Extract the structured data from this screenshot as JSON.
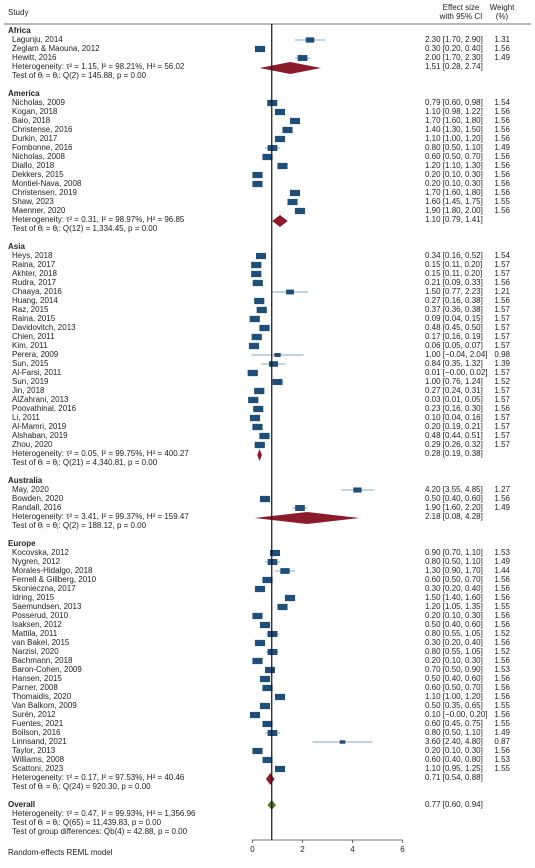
{
  "chart_data": {
    "type": "forest",
    "headers": {
      "study": "Study",
      "effect": [
        "Effect size",
        "with 95% CI"
      ],
      "weight": [
        "Weight",
        "(%)"
      ]
    },
    "model_label": "Random-effects REML model",
    "xlim": [
      0,
      6
    ],
    "xticks": [
      0,
      2,
      4,
      6
    ],
    "colors": {
      "study": "#1f4e79",
      "group": "#8b1a2b",
      "overall": "#4e7a2a",
      "ci": "#5b8db8"
    },
    "groups": [
      {
        "name": "Africa",
        "studies": [
          "Lagunju, 2014",
          "Zeglam & Maouna, 2012",
          "Hewitt, 2016"
        ],
        "es": [
          2.3,
          0.3,
          2.0
        ],
        "lo": [
          1.7,
          0.2,
          1.7
        ],
        "hi": [
          2.9,
          0.4,
          2.3
        ],
        "value_labels": [
          "2.30 [1.70, 2.90]",
          "0.30 [0.20, 0.40]",
          "2.00 [1.70, 2.30]"
        ],
        "weights": [
          1.31,
          1.56,
          1.49
        ],
        "heterogeneity": "Heterogeneity: τ² = 1.15, I² = 98.21%, H² = 56.02",
        "test": "Test of θᵢ = θⱼ: Q(2) = 145.88, p = 0.00",
        "summary": {
          "es": 1.51,
          "lo": 0.28,
          "hi": 2.74,
          "label": "1.51 [0.28, 2.74]"
        }
      },
      {
        "name": "America",
        "studies": [
          "Nicholas, 2009",
          "Kogan, 2018",
          "Baio, 2018",
          "Christense, 2016",
          "Durkin, 2017",
          "Fombonne, 2016",
          "Nicholas, 2008",
          "Diallo, 2018",
          "Dekkers, 2015",
          "Montiel-Nava, 2008",
          "Christensen, 2019",
          "Shaw, 2023",
          "Maenner, 2020"
        ],
        "es": [
          0.79,
          1.1,
          1.7,
          1.4,
          1.1,
          0.8,
          0.6,
          1.2,
          0.2,
          0.2,
          1.7,
          1.6,
          1.9
        ],
        "lo": [
          0.6,
          0.98,
          1.6,
          1.3,
          1.0,
          0.5,
          0.5,
          1.1,
          0.1,
          0.1,
          1.6,
          1.45,
          1.8
        ],
        "hi": [
          0.98,
          1.22,
          1.8,
          1.5,
          1.2,
          1.1,
          0.7,
          1.3,
          0.3,
          0.3,
          1.8,
          1.75,
          2.0
        ],
        "value_labels": [
          "0.79 [0.60, 0.98]",
          "1.10 [0.98, 1.22]",
          "1.70 [1.60, 1.80]",
          "1.40 [1.30, 1.50]",
          "1.10 [1.00, 1.20]",
          "0.80 [0.50, 1.10]",
          "0.60 [0.50, 0.70]",
          "1.20 [1.10, 1.30]",
          "0.20 [0.10, 0.30]",
          "0.20 [0.10, 0.30]",
          "1.70 [1.60, 1.80]",
          "1.60 [1.45, 1.75]",
          "1.90 [1.80, 2.00]"
        ],
        "weights": [
          1.54,
          1.56,
          1.56,
          1.56,
          1.56,
          1.49,
          1.56,
          1.56,
          1.56,
          1.56,
          1.56,
          1.55,
          1.56
        ],
        "heterogeneity": "Heterogeneity: τ² = 0.31, I² = 98.97%, H² = 96.85",
        "test": "Test of θᵢ = θⱼ: Q(12) = 1,334.45, p = 0.00",
        "summary": {
          "es": 1.1,
          "lo": 0.79,
          "hi": 1.41,
          "label": "1.10 [0.79, 1.41]"
        }
      },
      {
        "name": "Asia",
        "studies": [
          "Heys, 2018",
          "Raina, 2017",
          "Akhter, 2018",
          "Rudra, 2017",
          "Chaaya, 2016",
          "Huang, 2014",
          "Raz, 2015",
          "Raina, 2015",
          "Davidovitch, 2013",
          "Chien, 2011",
          "Kim, 2011",
          "Perera, 2009",
          "Sun, 2015",
          "Al-Farsi, 2011",
          "Sun, 2019",
          "Jin, 2018",
          "AlZahrani, 2013",
          "Poovathinal, 2016",
          "Li, 2011",
          "Al-Mamri, 2019",
          "Alshaban, 2019",
          "Zhou, 2020"
        ],
        "es": [
          0.34,
          0.15,
          0.15,
          0.21,
          1.5,
          0.27,
          0.37,
          0.09,
          0.48,
          0.17,
          0.06,
          1.0,
          0.84,
          0.01,
          1.0,
          0.27,
          0.03,
          0.23,
          0.1,
          0.2,
          0.48,
          0.29
        ],
        "lo": [
          0.16,
          0.11,
          0.11,
          0.09,
          0.77,
          0.16,
          0.36,
          0.04,
          0.45,
          0.16,
          0.05,
          -0.04,
          0.35,
          0,
          0.76,
          0.24,
          0.01,
          0.16,
          0.04,
          0.19,
          0.44,
          0.26
        ],
        "hi": [
          0.52,
          0.2,
          0.2,
          0.33,
          2.23,
          0.38,
          0.38,
          0.15,
          0.5,
          0.19,
          0.07,
          2.04,
          1.32,
          0.02,
          1.24,
          0.31,
          0.05,
          0.3,
          0.16,
          0.21,
          0.51,
          0.32
        ],
        "value_labels": [
          "0.34 [0.16, 0.52]",
          "0.15 [0.11, 0.20]",
          "0.15 [0.11, 0.20]",
          "0.21 [0.09, 0.33]",
          "1.50 [0.77, 2.23]",
          "0.27 [0.16, 0.38]",
          "0.37 [0.36, 0.38]",
          "0.09 [0.04, 0.15]",
          "0.48 [0.45, 0.50]",
          "0.17 [0.16, 0.19]",
          "0.06 [0.05, 0.07]",
          "1.00 [−0.04, 2.04]",
          "0.84 [0.35, 1.32]",
          "0.01 [−0.00, 0.02]",
          "1.00 [0.76, 1.24]",
          "0.27 [0.24, 0.31]",
          "0.03 [0.01, 0.05]",
          "0.23 [0.16, 0.30]",
          "0.10 [0.04, 0.16]",
          "0.20 [0.19, 0.21]",
          "0.48 [0.44, 0.51]",
          "0.29 [0.26, 0.32]"
        ],
        "weights": [
          1.54,
          1.57,
          1.57,
          1.56,
          1.21,
          1.56,
          1.57,
          1.57,
          1.57,
          1.57,
          1.57,
          0.98,
          1.39,
          1.57,
          1.52,
          1.57,
          1.57,
          1.56,
          1.57,
          1.57,
          1.57,
          1.57
        ],
        "heterogeneity": "Heterogeneity: τ² = 0.05, I² = 99.75%, H² = 400.27",
        "test": "Test of θᵢ = θⱼ: Q(21) = 4,340.81, p = 0.00",
        "summary": {
          "es": 0.28,
          "lo": 0.19,
          "hi": 0.38,
          "label": "0.28 [0.19, 0.38]"
        }
      },
      {
        "name": "Australia",
        "studies": [
          "May, 2020",
          "Bowden, 2020",
          "Randall, 2016"
        ],
        "es": [
          4.2,
          0.5,
          1.9
        ],
        "lo": [
          3.55,
          0.4,
          1.6
        ],
        "hi": [
          4.85,
          0.6,
          2.2
        ],
        "value_labels": [
          "4.20 [3.55, 4.85]",
          "0.50 [0.40, 0.60]",
          "1.90 [1.60, 2.20]"
        ],
        "weights": [
          1.27,
          1.56,
          1.49
        ],
        "heterogeneity": "Heterogeneity: τ² = 3.41, I² = 99.37%, H² = 159.47",
        "test": "Test of θᵢ = θⱼ: Q(2) = 188.12, p = 0.00",
        "summary": {
          "es": 2.18,
          "lo": 0.08,
          "hi": 4.28,
          "label": "2.18 [0.08, 4.28]"
        }
      },
      {
        "name": "Europe",
        "studies": [
          "Kocovska, 2012",
          "Nygren, 2012",
          "Morales-Hidalgo, 2018",
          "Fernell & Gillberg, 2010",
          "Skonieczna, 2017",
          "Idring, 2015",
          "Saemundsen, 2013",
          "Posserud, 2010",
          "Isaksen, 2012",
          "Mattila, 2011",
          "van Bakel, 2015",
          "Narzisi, 2020",
          "Bachmann, 2018",
          "Baron-Cohen, 2009",
          "Hansen, 2015",
          "Parner, 2008",
          "Thomaidis, 2020",
          "Van Balkom, 2009",
          "Surén, 2012",
          "Fuentes, 2021",
          "Boilson, 2016",
          "Linnsand, 2021",
          "Taylor, 2013",
          "Williams, 2008",
          "Scattoni, 2023"
        ],
        "es": [
          0.9,
          0.8,
          1.3,
          0.6,
          0.3,
          1.5,
          1.2,
          0.2,
          0.5,
          0.8,
          0.3,
          0.8,
          0.2,
          0.7,
          0.5,
          0.6,
          1.1,
          0.5,
          0.1,
          0.6,
          0.8,
          3.6,
          0.2,
          0.6,
          1.1
        ],
        "lo": [
          0.7,
          0.5,
          0.9,
          0.5,
          0.2,
          1.4,
          1.05,
          0.1,
          0.4,
          0.55,
          0.2,
          0.55,
          0.1,
          0.5,
          0.4,
          0.5,
          1.0,
          0.35,
          0,
          0.45,
          0.5,
          2.4,
          0.1,
          0.4,
          0.95
        ],
        "hi": [
          1.1,
          1.1,
          1.7,
          0.7,
          0.4,
          1.6,
          1.35,
          0.3,
          0.6,
          1.05,
          0.4,
          1.05,
          0.3,
          0.9,
          0.6,
          0.7,
          1.2,
          0.65,
          0.2,
          0.75,
          1.1,
          4.8,
          0.3,
          0.8,
          1.25
        ],
        "value_labels": [
          "0.90 [0.70, 1.10]",
          "0.80 [0.50, 1.10]",
          "1.30 [0.90, 1.70]",
          "0.60 [0.50, 0.70]",
          "0.30 [0.20, 0.40]",
          "1.50 [1.40, 1.60]",
          "1.20 [1.05, 1.35]",
          "0.20 [0.10, 0.30]",
          "0.50 [0.40, 0.60]",
          "0.80 [0.55, 1.05]",
          "0.30 [0.20, 0.40]",
          "0.80 [0.55, 1.05]",
          "0.20 [0.10, 0.30]",
          "0.70 [0.50, 0.90]",
          "0.50 [0.40, 0.60]",
          "0.60 [0.50, 0.70]",
          "1.10 [1.00, 1.20]",
          "0.50 [0.35, 0.65]",
          "0.10 [−0.00, 0.20]",
          "0.60 [0.45, 0.75]",
          "0.80 [0.50, 1.10]",
          "3.60 [2.40, 4.80]",
          "0.20 [0.10, 0.30]",
          "0.60 [0.40, 0.80]",
          "1.10 [0.95, 1.25]"
        ],
        "weights": [
          1.53,
          1.49,
          1.44,
          1.56,
          1.56,
          1.56,
          1.55,
          1.56,
          1.56,
          1.52,
          1.56,
          1.52,
          1.56,
          1.53,
          1.56,
          1.56,
          1.56,
          1.55,
          1.56,
          1.55,
          1.49,
          0.87,
          1.56,
          1.53,
          1.55
        ],
        "heterogeneity": "Heterogeneity: τ² = 0.17, I² = 97.53%, H² = 40.46",
        "test": "Test of θᵢ = θⱼ: Q(24) = 920.30, p = 0.00",
        "summary": {
          "es": 0.71,
          "lo": 0.54,
          "hi": 0.88,
          "label": "0.71 [0.54, 0.88]"
        }
      }
    ],
    "overall": {
      "name": "Overall",
      "es": 0.77,
      "lo": 0.6,
      "hi": 0.94,
      "label": "0.77 [0.60, 0.94]",
      "heterogeneity": "Heterogeneity: τ² = 0.47, I² = 99.93%, H² = 1,356.96",
      "test": "Test of θᵢ = θⱼ: Q(65) = 11,439.83, p = 0.00",
      "group_test": "Test of group differences: Qb(4) = 42.88, p = 0.00"
    }
  }
}
